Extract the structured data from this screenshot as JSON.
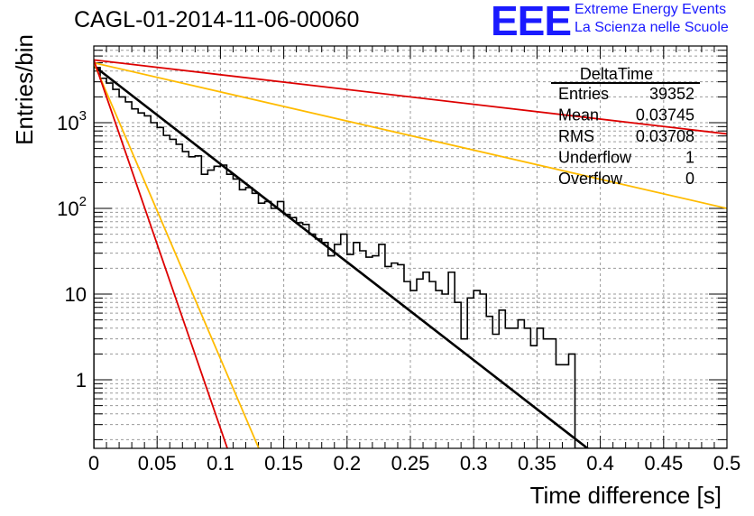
{
  "title": "CAGL-01-2014-11-06-00060",
  "logo": {
    "mark": "EEE",
    "line1": "Extreme Energy Events",
    "line2": "La Scienza nelle Scuole"
  },
  "chart_data": {
    "type": "line",
    "title": "CAGL-01-2014-11-06-00060",
    "xlabel": "Time difference [s]",
    "ylabel": "Entries/bin",
    "xlim": [
      0,
      0.5
    ],
    "ylim": [
      0.15,
      9000
    ],
    "yscale": "log",
    "grid": true,
    "x_ticks": [
      "0",
      "0.05",
      "0.1",
      "0.15",
      "0.2",
      "0.25",
      "0.3",
      "0.35",
      "0.4",
      "0.45",
      "0.5"
    ],
    "y_ticks": [
      "1",
      "10",
      "10^2",
      "10^3"
    ],
    "stats_box": {
      "name": "DeltaTime",
      "rows": [
        {
          "label": "Entries",
          "value": "39352"
        },
        {
          "label": "Mean",
          "value": "0.03745"
        },
        {
          "label": "RMS",
          "value": "0.03708"
        },
        {
          "label": "Underflow",
          "value": "1"
        },
        {
          "label": "Overflow",
          "value": "0"
        }
      ]
    },
    "histogram": {
      "name": "DeltaTime",
      "bin_width": 0.005,
      "x_start": 0,
      "values": [
        4400,
        3300,
        2900,
        2450,
        2000,
        1750,
        1450,
        1300,
        1200,
        1000,
        880,
        710,
        640,
        560,
        460,
        400,
        410,
        250,
        280,
        310,
        320,
        250,
        220,
        165,
        175,
        150,
        115,
        120,
        100,
        120,
        85,
        78,
        68,
        65,
        50,
        44,
        40,
        28,
        38,
        50,
        29,
        40,
        32,
        27,
        28,
        38,
        21,
        23,
        22,
        14,
        11,
        15,
        18,
        14,
        11,
        10,
        18,
        8,
        3,
        9,
        11,
        10,
        5.5,
        3.4,
        6.5,
        4,
        4,
        5,
        4,
        2.5,
        4,
        3,
        3,
        1.5,
        1.5,
        2,
        0.01,
        0.01,
        0.01,
        0.01,
        0.01,
        0.01,
        0.01,
        0.01,
        0.01,
        0.01,
        0.01,
        0.01,
        0.01,
        0.01,
        0.01,
        0.01,
        0.01,
        0.01,
        0.01,
        0.01,
        0.01,
        0.01,
        0.01,
        0.01
      ],
      "color": "#000000"
    },
    "series": [
      {
        "name": "fit",
        "color": "#000000",
        "x": [
          0,
          0.392
        ],
        "y": [
          4600,
          0.15
        ]
      },
      {
        "color": "#dd0000",
        "x": [
          0,
          0.5
        ],
        "y": [
          5400,
          740
        ]
      },
      {
        "color": "#ffbb00",
        "x": [
          0,
          0.5
        ],
        "y": [
          5000,
          100
        ]
      },
      {
        "color": "#ffbb00",
        "x": [
          0,
          0.131
        ],
        "y": [
          5000,
          0.15
        ]
      },
      {
        "color": "#dd0000",
        "x": [
          0,
          0.106
        ],
        "y": [
          5400,
          0.15
        ]
      }
    ]
  }
}
